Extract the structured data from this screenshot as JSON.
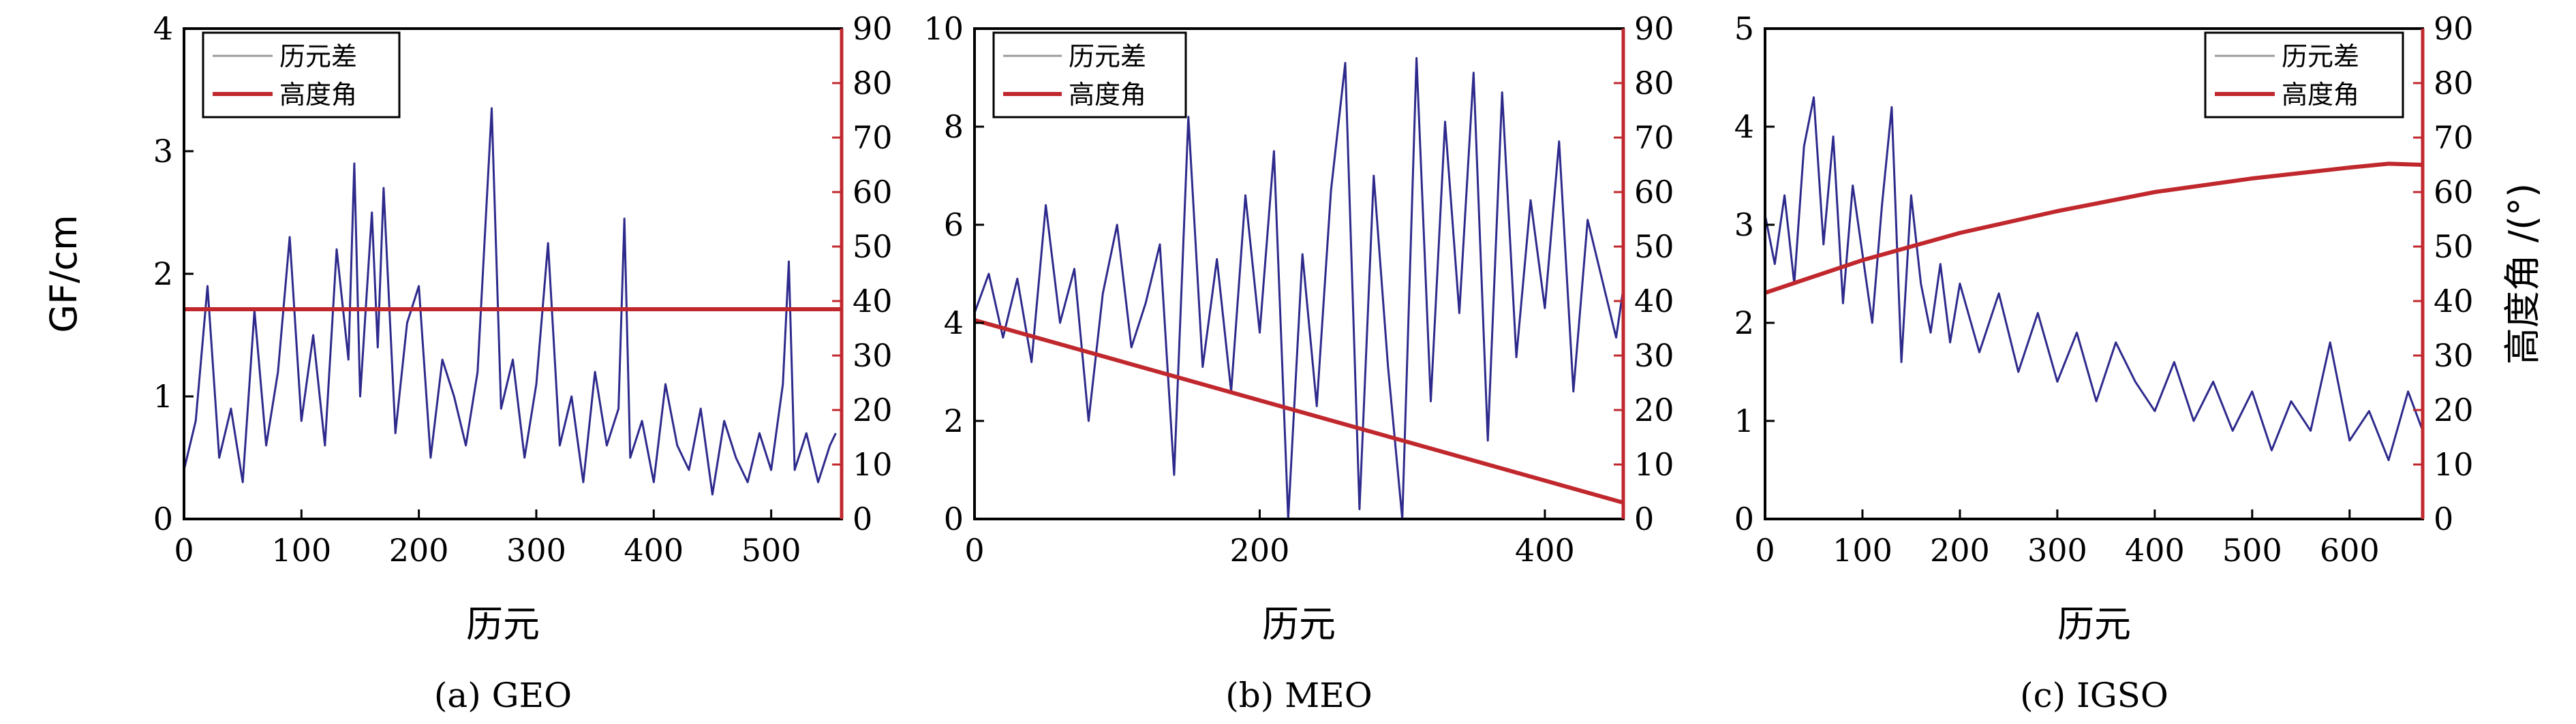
{
  "chart_data": [
    {
      "type": "line",
      "caption": "(a) GEO",
      "xlabel": "历元",
      "ylabel": "GF/cm",
      "y2label": "",
      "xlim": [
        0,
        560
      ],
      "xticks": [
        0,
        100,
        200,
        300,
        400,
        500
      ],
      "ylim": [
        0,
        4
      ],
      "yticks": [
        0,
        1,
        2,
        3,
        4
      ],
      "y2lim": [
        0,
        90
      ],
      "y2ticks": [
        0,
        10,
        20,
        30,
        40,
        50,
        60,
        70,
        80,
        90
      ],
      "legend": {
        "position": "top-left",
        "entries": [
          "历元差",
          "高度角"
        ]
      },
      "series": [
        {
          "name": "历元差",
          "axis": "left",
          "color": "#2e2a8c",
          "x": [
            0,
            10,
            20,
            30,
            40,
            50,
            60,
            70,
            80,
            90,
            100,
            110,
            120,
            130,
            140,
            145,
            150,
            160,
            165,
            170,
            180,
            190,
            200,
            210,
            220,
            230,
            240,
            250,
            262,
            270,
            280,
            290,
            300,
            310,
            320,
            330,
            340,
            350,
            360,
            370,
            375,
            380,
            390,
            400,
            410,
            420,
            430,
            440,
            450,
            460,
            470,
            480,
            490,
            500,
            510,
            515,
            520,
            530,
            540,
            550,
            555
          ],
          "values": [
            0.4,
            0.8,
            1.9,
            0.5,
            0.9,
            0.3,
            1.7,
            0.6,
            1.2,
            2.3,
            0.8,
            1.5,
            0.6,
            2.2,
            1.3,
            2.9,
            1.0,
            2.5,
            1.4,
            2.7,
            0.7,
            1.6,
            1.9,
            0.5,
            1.3,
            1.0,
            0.6,
            1.2,
            3.35,
            0.9,
            1.3,
            0.5,
            1.1,
            2.25,
            0.6,
            1.0,
            0.3,
            1.2,
            0.6,
            0.9,
            2.45,
            0.5,
            0.8,
            0.3,
            1.1,
            0.6,
            0.4,
            0.9,
            0.2,
            0.8,
            0.5,
            0.3,
            0.7,
            0.4,
            1.1,
            2.1,
            0.4,
            0.7,
            0.3,
            0.6,
            0.7
          ]
        },
        {
          "name": "高度角",
          "axis": "right",
          "color": "#c0282d",
          "x": [
            0,
            560
          ],
          "values": [
            38.5,
            38.5
          ]
        }
      ]
    },
    {
      "type": "line",
      "caption": "(b) MEO",
      "xlabel": "历元",
      "ylabel": "",
      "y2label": "",
      "xlim": [
        0,
        455
      ],
      "xticks": [
        0,
        200,
        400
      ],
      "ylim": [
        0,
        10
      ],
      "yticks": [
        0,
        2,
        4,
        6,
        8,
        10
      ],
      "y2lim": [
        0,
        90
      ],
      "y2ticks": [
        0,
        10,
        20,
        30,
        40,
        50,
        60,
        70,
        80,
        90
      ],
      "legend": {
        "position": "top-left",
        "entries": [
          "历元差",
          "高度角"
        ]
      },
      "series": [
        {
          "name": "历元差",
          "axis": "left",
          "color": "#2e2a8c",
          "x": [
            0,
            10,
            20,
            30,
            40,
            50,
            60,
            70,
            80,
            90,
            100,
            110,
            120,
            130,
            140,
            150,
            160,
            170,
            180,
            190,
            200,
            210,
            220,
            230,
            240,
            250,
            260,
            270,
            280,
            290,
            300,
            310,
            320,
            330,
            340,
            350,
            360,
            370,
            380,
            390,
            400,
            410,
            420,
            430,
            440,
            450,
            455
          ],
          "values": [
            4.2,
            5.0,
            3.7,
            4.9,
            3.2,
            6.4,
            4.0,
            5.1,
            2.0,
            4.6,
            6.0,
            3.5,
            4.4,
            5.6,
            0.9,
            8.2,
            3.1,
            5.3,
            2.6,
            6.6,
            3.8,
            7.5,
            0.0,
            5.4,
            2.3,
            6.7,
            9.3,
            0.2,
            7.0,
            3.1,
            0.0,
            9.4,
            2.4,
            8.1,
            4.2,
            9.1,
            1.6,
            8.7,
            3.3,
            6.5,
            4.3,
            7.7,
            2.6,
            6.1,
            4.9,
            3.7,
            4.7
          ]
        },
        {
          "name": "高度角",
          "axis": "right",
          "color": "#c0282d",
          "x": [
            0,
            455
          ],
          "values": [
            36.5,
            3.0
          ]
        }
      ]
    },
    {
      "type": "line",
      "caption": "(c) IGSO",
      "xlabel": "历元",
      "ylabel": "",
      "y2label": "高度角 /(°)",
      "xlim": [
        0,
        675
      ],
      "xticks": [
        0,
        100,
        200,
        300,
        400,
        500,
        600
      ],
      "ylim": [
        0,
        5
      ],
      "yticks": [
        0,
        1,
        2,
        3,
        4,
        5
      ],
      "y2lim": [
        0,
        90
      ],
      "y2ticks": [
        0,
        10,
        20,
        30,
        40,
        50,
        60,
        70,
        80,
        90
      ],
      "legend": {
        "position": "top-right",
        "entries": [
          "历元差",
          "高度角"
        ]
      },
      "series": [
        {
          "name": "历元差",
          "axis": "left",
          "color": "#2e2a8c",
          "x": [
            0,
            10,
            20,
            30,
            40,
            50,
            60,
            70,
            80,
            90,
            100,
            110,
            120,
            130,
            140,
            150,
            160,
            170,
            180,
            190,
            200,
            220,
            240,
            260,
            280,
            300,
            320,
            340,
            360,
            380,
            400,
            420,
            440,
            460,
            480,
            500,
            520,
            540,
            560,
            580,
            600,
            620,
            640,
            660,
            675
          ],
          "values": [
            3.1,
            2.6,
            3.3,
            2.4,
            3.8,
            4.3,
            2.8,
            3.9,
            2.2,
            3.4,
            2.7,
            2.0,
            3.2,
            4.2,
            1.6,
            3.3,
            2.4,
            1.9,
            2.6,
            1.8,
            2.4,
            1.7,
            2.3,
            1.5,
            2.1,
            1.4,
            1.9,
            1.2,
            1.8,
            1.4,
            1.1,
            1.6,
            1.0,
            1.4,
            0.9,
            1.3,
            0.7,
            1.2,
            0.9,
            1.8,
            0.8,
            1.1,
            0.6,
            1.3,
            0.9
          ]
        },
        {
          "name": "高度角",
          "axis": "right",
          "color": "#c0282d",
          "x": [
            0,
            100,
            200,
            300,
            400,
            500,
            600,
            640,
            675
          ],
          "values": [
            41.5,
            47.5,
            52.5,
            56.5,
            60.0,
            62.5,
            64.5,
            65.2,
            65.0
          ]
        }
      ]
    }
  ]
}
